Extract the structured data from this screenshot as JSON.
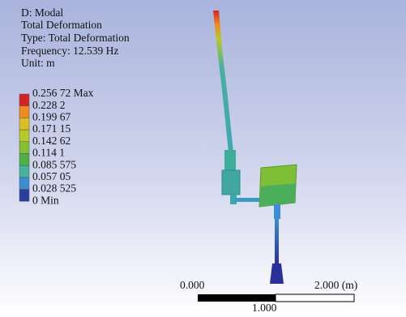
{
  "header": {
    "lines": [
      "D: Modal",
      "Total Deformation",
      "Type: Total Deformation",
      "Frequency: 12.539 Hz",
      "Unit: m"
    ]
  },
  "legend": {
    "labels": [
      "0.256 72 Max",
      "0.228 2",
      "0.199 67",
      "0.171 15",
      "0.142 62",
      "0.114 1",
      "0.085 575",
      "0.057 05",
      "0.028 525",
      "0 Min"
    ],
    "colors": [
      "#d42323",
      "#ef8a1e",
      "#d9c023",
      "#b6cb2a",
      "#83c132",
      "#4fae45",
      "#45b29c",
      "#3b8ed0",
      "#2b3e9e"
    ]
  },
  "scale": {
    "left": "0.000",
    "right": "2.000 (m)",
    "middle": "1.000"
  }
}
